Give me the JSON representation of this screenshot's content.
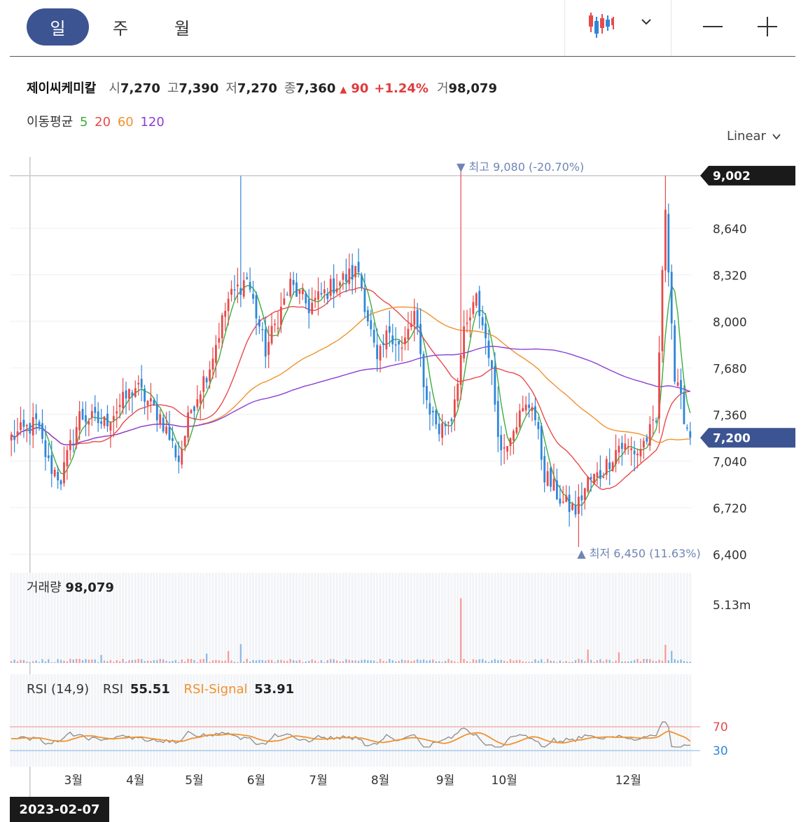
{
  "header": {
    "period_tabs": [
      {
        "label": "일",
        "active": true
      },
      {
        "label": "주",
        "active": false
      },
      {
        "label": "월",
        "active": false
      }
    ],
    "chart_type_icon": "candlestick-icon",
    "dropdown_icon": "chevron-down-icon",
    "zoom_out_icon": "minus-icon",
    "zoom_in_icon": "plus-icon"
  },
  "summary": {
    "name": "제이씨케미칼",
    "open_label": "시",
    "open": "7,270",
    "high_label": "고",
    "high": "7,390",
    "low_label": "저",
    "low": "7,270",
    "close_label": "종",
    "close": "7,360",
    "change_arrow": "▲",
    "change": "90",
    "change_pct": "+1.24%",
    "volume_label": "거",
    "volume": "98,079"
  },
  "ma_legend": {
    "label": "이동평균",
    "periods": [
      {
        "label": "5",
        "color": "#3cae3c"
      },
      {
        "label": "20",
        "color": "#e84a4a"
      },
      {
        "label": "60",
        "color": "#f0922e"
      },
      {
        "label": "120",
        "color": "#8b3fd6"
      }
    ]
  },
  "scale_selector": "Linear",
  "colors": {
    "up": "#e84a4a",
    "down": "#2f86d9",
    "badge_dark": "#1a1a1a",
    "badge_blue": "#3d5492",
    "rsi": "#8a8a8a",
    "rsi_signal": "#f0922e"
  },
  "chart_data": {
    "type": "candlestick",
    "y_ticks": [
      "8,640",
      "8,320",
      "8,000",
      "7,680",
      "7,360",
      "7,040",
      "6,720",
      "6,400"
    ],
    "y_tick_values": [
      8640,
      8320,
      8000,
      7680,
      7360,
      7040,
      6720,
      6400
    ],
    "price_range": [
      6340,
      9160
    ],
    "x_ticks": [
      "3월",
      "4월",
      "5월",
      "6월",
      "7월",
      "8월",
      "9월",
      "10월",
      "12월"
    ],
    "x_tick_index": [
      20,
      40,
      59,
      79,
      99,
      119,
      140,
      159,
      199
    ],
    "n_bars": 220,
    "max_marker": {
      "label": "최고",
      "value": "9,080",
      "pct": "(-20.70%)",
      "index": 145
    },
    "min_marker": {
      "label": "최저",
      "value": "6,450",
      "pct": "(11.63%)",
      "index": 183
    },
    "crosshair": {
      "price_label": "9,002",
      "price": 9002,
      "date": "2023-02-07",
      "index": 6
    },
    "last_price": {
      "label": "7,200",
      "value": 7200
    },
    "anchors": [
      [
        0,
        7200
      ],
      [
        8,
        7300
      ],
      [
        12,
        7020
      ],
      [
        16,
        6920
      ],
      [
        22,
        7350
      ],
      [
        30,
        7300
      ],
      [
        40,
        7550
      ],
      [
        48,
        7350
      ],
      [
        54,
        7050
      ],
      [
        58,
        7400
      ],
      [
        64,
        7700
      ],
      [
        70,
        8150
      ],
      [
        76,
        8300
      ],
      [
        82,
        7800
      ],
      [
        90,
        8250
      ],
      [
        96,
        8100
      ],
      [
        104,
        8250
      ],
      [
        112,
        8350
      ],
      [
        118,
        7700
      ],
      [
        122,
        7950
      ],
      [
        126,
        7800
      ],
      [
        130,
        8050
      ],
      [
        134,
        7450
      ],
      [
        138,
        7250
      ],
      [
        142,
        7350
      ],
      [
        146,
        7900
      ],
      [
        150,
        8150
      ],
      [
        154,
        7800
      ],
      [
        158,
        7100
      ],
      [
        162,
        7300
      ],
      [
        168,
        7450
      ],
      [
        172,
        6950
      ],
      [
        178,
        6750
      ],
      [
        182,
        6700
      ],
      [
        186,
        6900
      ],
      [
        190,
        6950
      ],
      [
        196,
        7150
      ],
      [
        202,
        7100
      ],
      [
        208,
        7300
      ],
      [
        211,
        8800
      ],
      [
        214,
        7600
      ],
      [
        219,
        7200
      ]
    ],
    "spikes": [
      [
        74,
        9000
      ],
      [
        145,
        9080
      ],
      [
        211,
        9002
      ],
      [
        183,
        6450
      ]
    ],
    "volume": {
      "label": "거래량",
      "value": "98,079",
      "axis_label": "5.13m",
      "axis_max": 5130000,
      "spikes": [
        [
          145,
          4800000
        ],
        [
          74,
          1400000
        ],
        [
          70,
          900000
        ],
        [
          63,
          700000
        ],
        [
          186,
          1000000
        ],
        [
          196,
          800000
        ],
        [
          211,
          1350000
        ],
        [
          213,
          900000
        ],
        [
          29,
          600000
        ]
      ]
    },
    "rsi": {
      "label": "RSI (14,9)",
      "rsi_label": "RSI",
      "rsi_value": "55.51",
      "signal_label": "RSI-Signal",
      "signal_value": "53.91",
      "levels": [
        {
          "label": "70",
          "value": 70,
          "color": "#e84a4a"
        },
        {
          "label": "30",
          "value": 30,
          "color": "#2f86d9"
        }
      ]
    }
  }
}
